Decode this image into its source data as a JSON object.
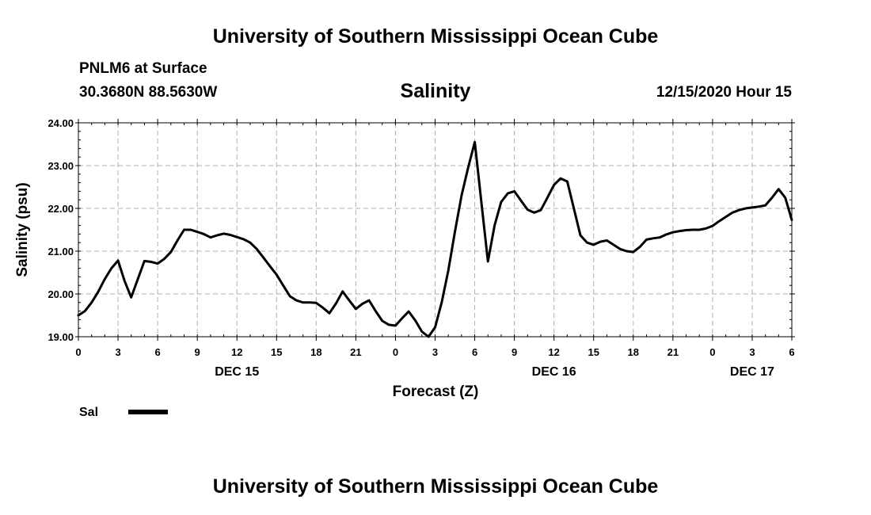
{
  "header": {
    "top_title": "University of Southern Mississippi Ocean Cube",
    "station": "PNLM6 at Surface",
    "coords": "30.3680N 88.5630W",
    "chart_title": "Salinity",
    "timestamp": "12/15/2020 Hour 15",
    "bottom_title": "University of Southern Mississippi Ocean Cube"
  },
  "chart_data": {
    "type": "line",
    "title": "Salinity",
    "xlabel": "Forecast (Z)",
    "ylabel": "Salinity (psu)",
    "ylim": [
      19.0,
      24.0
    ],
    "xlim": [
      0,
      54
    ],
    "grid": true,
    "y_ticks": [
      "19.00",
      "20.00",
      "21.00",
      "22.00",
      "23.00",
      "24.00"
    ],
    "x_ticks": [
      {
        "x": 0,
        "label": "0"
      },
      {
        "x": 3,
        "label": "3"
      },
      {
        "x": 6,
        "label": "6"
      },
      {
        "x": 9,
        "label": "9"
      },
      {
        "x": 12,
        "label": "12"
      },
      {
        "x": 15,
        "label": "15"
      },
      {
        "x": 18,
        "label": "18"
      },
      {
        "x": 21,
        "label": "21"
      },
      {
        "x": 24,
        "label": "0"
      },
      {
        "x": 27,
        "label": "3"
      },
      {
        "x": 30,
        "label": "6"
      },
      {
        "x": 33,
        "label": "9"
      },
      {
        "x": 36,
        "label": "12"
      },
      {
        "x": 39,
        "label": "15"
      },
      {
        "x": 42,
        "label": "18"
      },
      {
        "x": 45,
        "label": "21"
      },
      {
        "x": 48,
        "label": "0"
      },
      {
        "x": 51,
        "label": "3"
      },
      {
        "x": 54,
        "label": "6"
      }
    ],
    "day_labels": [
      {
        "x": 12,
        "label": "DEC 15"
      },
      {
        "x": 36,
        "label": "DEC 16"
      },
      {
        "x": 51,
        "label": "DEC 17"
      }
    ],
    "legend": {
      "label": "Sal",
      "position": "bottom-left"
    },
    "series": [
      {
        "name": "Sal",
        "x": [
          0,
          0.5,
          1,
          1.5,
          2,
          2.5,
          3,
          3.5,
          4,
          4.5,
          5,
          5.5,
          6,
          6.5,
          7,
          7.5,
          8,
          8.5,
          9,
          9.5,
          10,
          10.5,
          11,
          11.5,
          12,
          12.5,
          13,
          13.5,
          14,
          14.5,
          15,
          15.5,
          16,
          16.5,
          17,
          17.5,
          18,
          18.5,
          19,
          19.5,
          20,
          20.5,
          21,
          21.5,
          22,
          22.5,
          23,
          23.5,
          24,
          24.5,
          25,
          25.5,
          26,
          26.5,
          27,
          27.5,
          28,
          28.5,
          29,
          29.5,
          30,
          30.5,
          31,
          31.5,
          32,
          32.5,
          33,
          33.5,
          34,
          34.5,
          35,
          35.5,
          36,
          36.5,
          37,
          37.5,
          38,
          38.5,
          39,
          39.5,
          40,
          40.5,
          41,
          41.5,
          42,
          42.5,
          43,
          43.5,
          44,
          44.5,
          45,
          45.5,
          46,
          46.5,
          47,
          47.5,
          48,
          48.5,
          49,
          49.5,
          50,
          50.5,
          51,
          51.5,
          52,
          52.5,
          53,
          53.5,
          54
        ],
        "values": [
          19.5,
          19.6,
          19.8,
          20.05,
          20.35,
          20.6,
          20.78,
          20.3,
          19.92,
          20.35,
          20.77,
          20.75,
          20.71,
          20.82,
          20.98,
          21.25,
          21.5,
          21.5,
          21.45,
          21.4,
          21.32,
          21.37,
          21.41,
          21.38,
          21.33,
          21.28,
          21.2,
          21.05,
          20.85,
          20.65,
          20.45,
          20.2,
          19.95,
          19.85,
          19.8,
          19.8,
          19.79,
          19.68,
          19.55,
          19.78,
          20.06,
          19.85,
          19.65,
          19.77,
          19.85,
          19.6,
          19.37,
          19.28,
          19.26,
          19.43,
          19.59,
          19.38,
          19.12,
          19.0,
          19.22,
          19.8,
          20.55,
          21.45,
          22.3,
          22.95,
          23.55,
          22.15,
          20.76,
          21.6,
          22.15,
          22.35,
          22.4,
          22.18,
          21.97,
          21.9,
          21.96,
          22.25,
          22.55,
          22.7,
          22.63,
          22.0,
          21.37,
          21.2,
          21.15,
          21.22,
          21.25,
          21.15,
          21.05,
          21.0,
          20.98,
          21.1,
          21.27,
          21.3,
          21.32,
          21.39,
          21.44,
          21.47,
          21.49,
          21.5,
          21.5,
          21.53,
          21.59,
          21.7,
          21.8,
          21.9,
          21.96,
          22.0,
          22.02,
          22.04,
          22.07,
          22.25,
          22.45,
          22.25,
          21.73
        ]
      }
    ]
  }
}
